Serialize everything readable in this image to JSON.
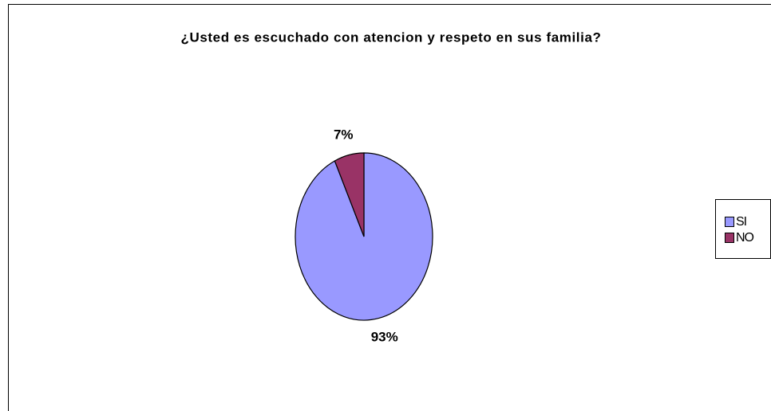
{
  "chart_data": {
    "type": "pie",
    "title": "¿Usted es escuchado con atencion y respeto en sus familia?",
    "categories": [
      "SI",
      "NO"
    ],
    "values": [
      93,
      7
    ],
    "value_labels": [
      "93%",
      "7%"
    ],
    "colors": [
      "#9999ff",
      "#993366"
    ],
    "legend": "right"
  }
}
